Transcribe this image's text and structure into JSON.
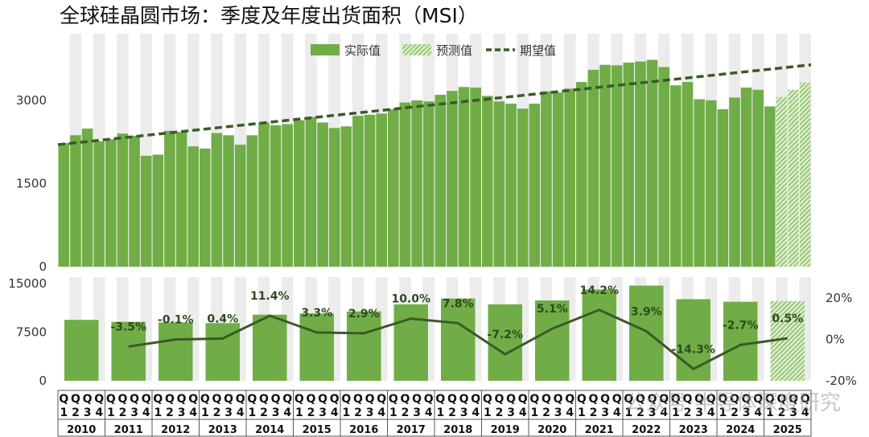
{
  "watermark": "公众号·半导体深度研究",
  "chart_data": [
    {
      "type": "bar",
      "title": "全球硅晶圆市场：季度及年度出货面积（MSI）",
      "legend": {
        "actual": "实际值",
        "forecast": "预测值",
        "trend": "期望值",
        "placement": "top-center"
      },
      "ylim": [
        0,
        4200
      ],
      "yticks": [
        "0",
        "1500",
        "3000"
      ],
      "quarter_labels": [
        "Q1",
        "Q2",
        "Q3",
        "Q4"
      ],
      "quarters": [
        2230,
        2370,
        2490,
        2260,
        2300,
        2400,
        2360,
        2000,
        2020,
        2450,
        2430,
        2170,
        2130,
        2410,
        2370,
        2200,
        2370,
        2600,
        2550,
        2570,
        2640,
        2700,
        2600,
        2500,
        2530,
        2720,
        2740,
        2760,
        2840,
        2960,
        3000,
        2980,
        3100,
        3170,
        3240,
        3230,
        3080,
        2980,
        2940,
        2850,
        2940,
        3160,
        3140,
        3210,
        3330,
        3550,
        3640,
        3630,
        3680,
        3700,
        3730,
        3600,
        3270,
        3330,
        3020,
        3000,
        2840,
        3050,
        3230,
        3190,
        2890,
        3060,
        3190,
        3320
      ],
      "forecast_from_index": 61,
      "trend_line": {
        "start": 2200,
        "end": 3640
      }
    },
    {
      "type": "bar",
      "years": [
        "2010",
        "2011",
        "2012",
        "2013",
        "2014",
        "2015",
        "2016",
        "2017",
        "2018",
        "2019",
        "2020",
        "2021",
        "2022",
        "2023",
        "2024",
        "2025"
      ],
      "annual_values": [
        9400,
        9100,
        9000,
        8900,
        10200,
        10400,
        10700,
        11800,
        12700,
        11800,
        12400,
        14100,
        14700,
        12600,
        12200,
        12300
      ],
      "forecast_years": [
        "2025"
      ],
      "ylim_left": [
        0,
        16000
      ],
      "yticks_left": [
        "0",
        "7500",
        "15000"
      ],
      "growth_pct": [
        null,
        -3.5,
        -0.1,
        0.4,
        11.4,
        3.3,
        2.9,
        10.0,
        7.8,
        -7.2,
        5.1,
        14.2,
        3.9,
        -14.3,
        -2.7,
        0.5
      ],
      "growth_labels": [
        "",
        "-3.5%",
        "-0.1%",
        "0.4%",
        "11.4%",
        "3.3%",
        "2.9%",
        "10.0%",
        "7.8%",
        "-7.2%",
        "5.1%",
        "14.2%",
        "3.9%",
        "-14.3%",
        "-2.7%",
        "0.5%"
      ],
      "ylim_right": [
        -20,
        30
      ],
      "yticks_right": [
        "-20%",
        "0%",
        "20%"
      ],
      "colors": {
        "bar": "#70ad47",
        "line": "#3a5a27",
        "band": "#ececec"
      }
    }
  ]
}
